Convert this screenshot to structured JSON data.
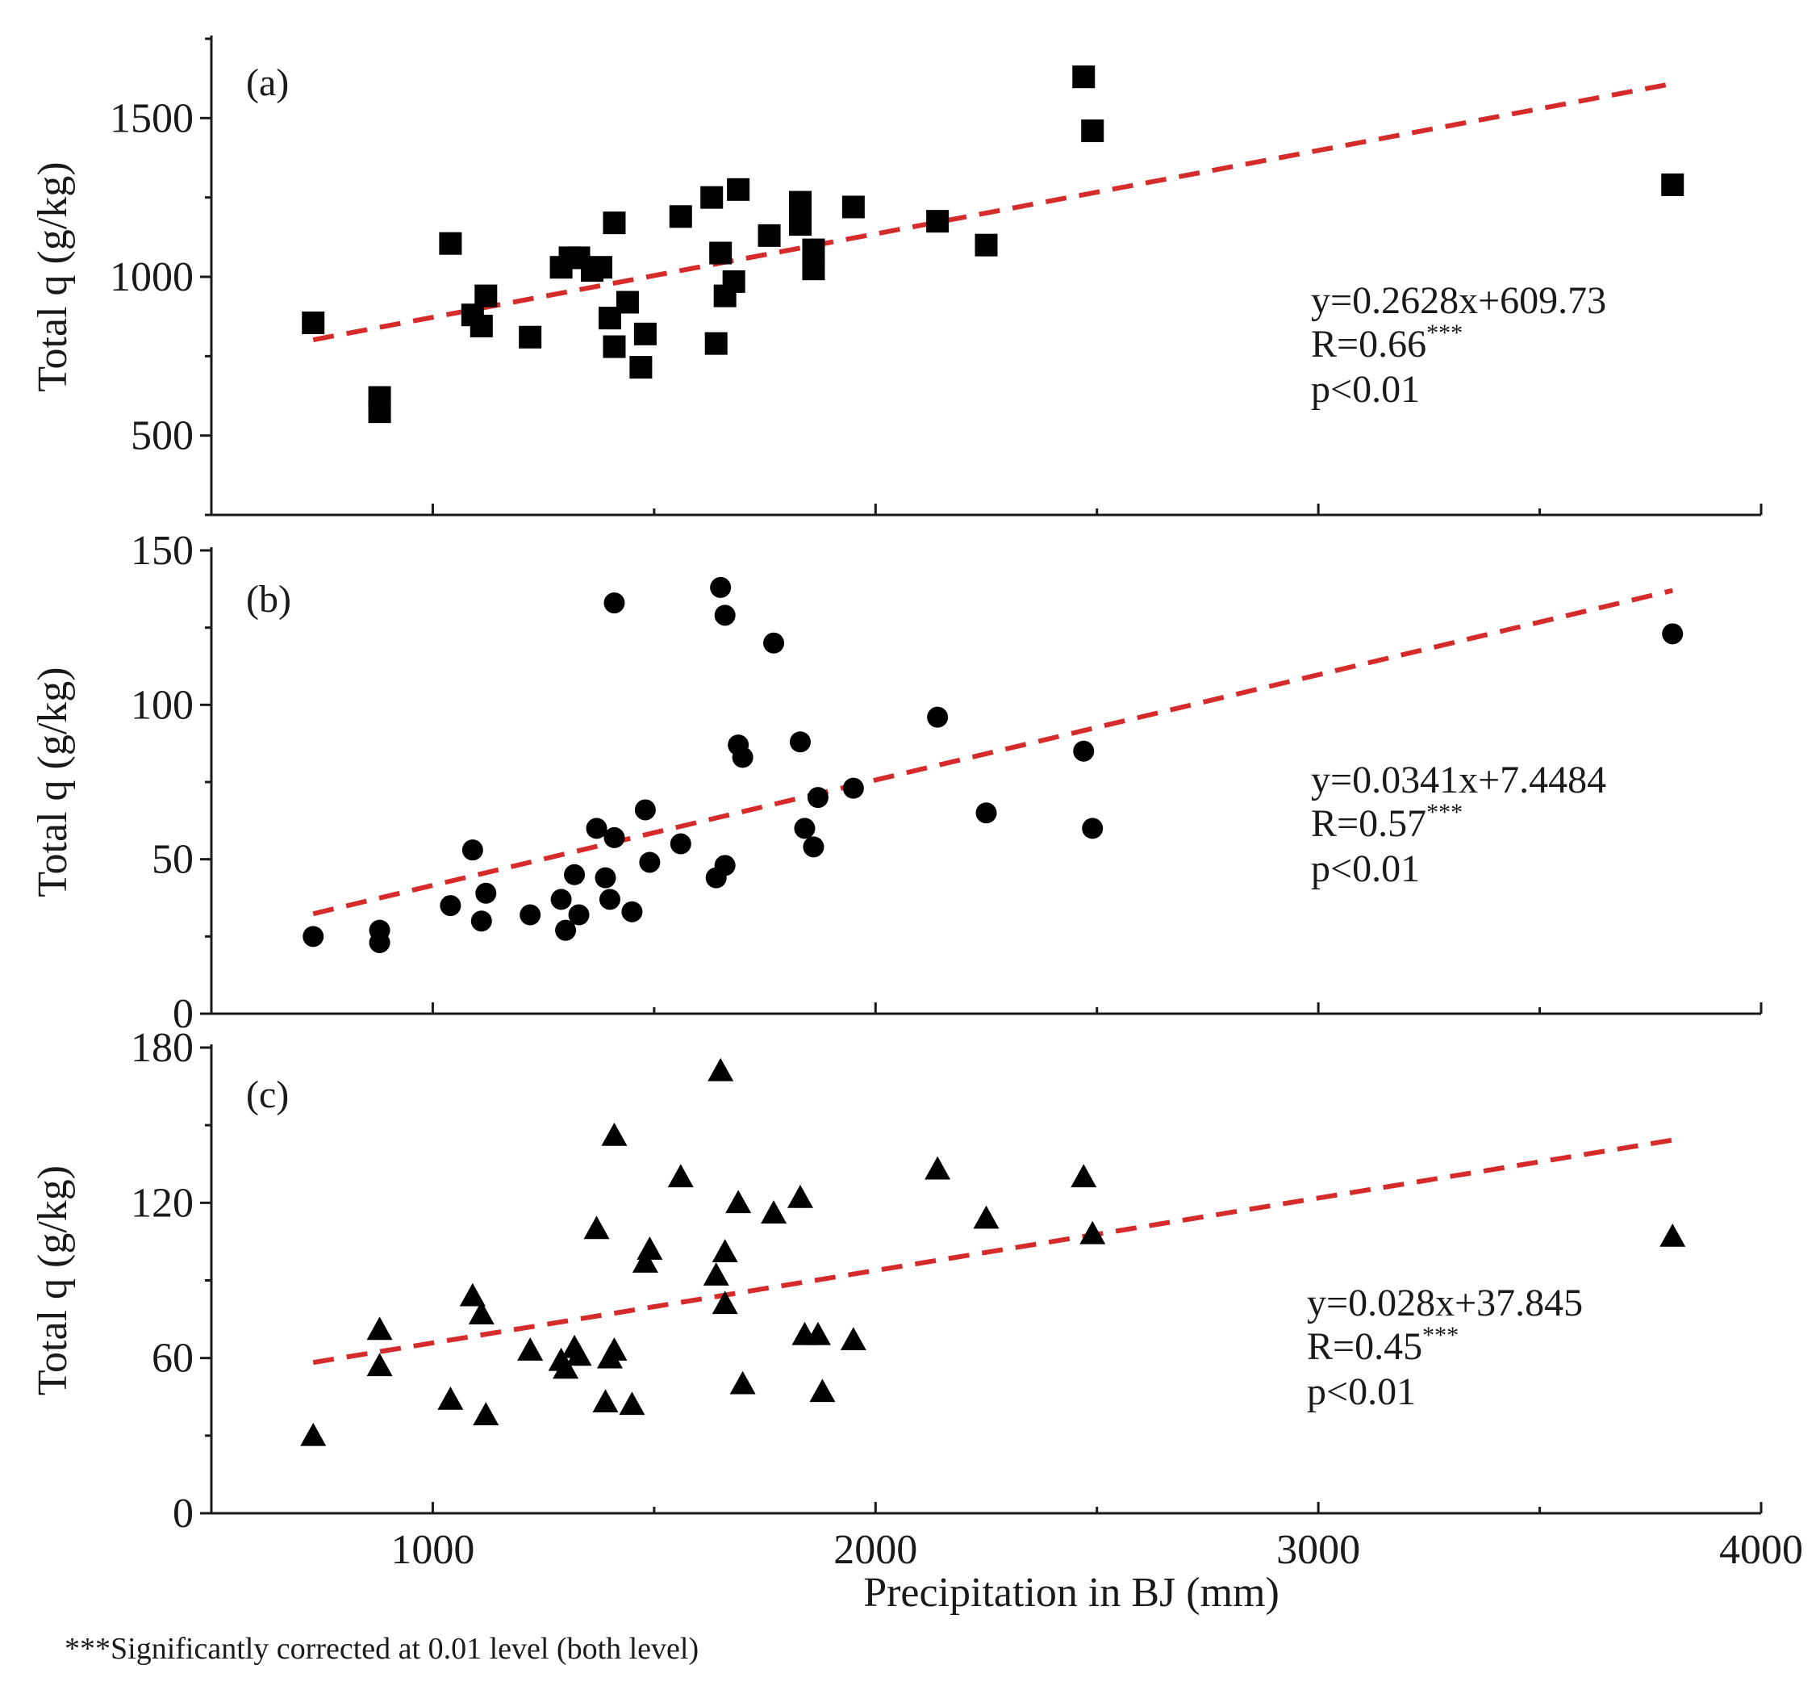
{
  "chart_data": [
    {
      "type": "scatter",
      "panel": "(a)",
      "marker": "square",
      "ylabel": "Total q (g/kg)",
      "xlabel": "Precipitation in BJ (mm)",
      "xlim": [
        500,
        4000
      ],
      "ylim": [
        250,
        1750
      ],
      "yticks": [
        500,
        1000,
        1500
      ],
      "xticks": [
        1000,
        2000,
        3000,
        4000
      ],
      "points": [
        [
          730,
          855
        ],
        [
          880,
          620
        ],
        [
          880,
          575
        ],
        [
          1040,
          1105
        ],
        [
          1090,
          880
        ],
        [
          1110,
          845
        ],
        [
          1120,
          940
        ],
        [
          1220,
          810
        ],
        [
          1290,
          1030
        ],
        [
          1310,
          1060
        ],
        [
          1330,
          1060
        ],
        [
          1360,
          1020
        ],
        [
          1380,
          1030
        ],
        [
          1400,
          870
        ],
        [
          1410,
          1170
        ],
        [
          1410,
          780
        ],
        [
          1440,
          920
        ],
        [
          1470,
          715
        ],
        [
          1480,
          820
        ],
        [
          1560,
          1190
        ],
        [
          1630,
          1250
        ],
        [
          1640,
          790
        ],
        [
          1650,
          1075
        ],
        [
          1660,
          940
        ],
        [
          1680,
          985
        ],
        [
          1690,
          1275
        ],
        [
          1760,
          1130
        ],
        [
          1830,
          1235
        ],
        [
          1830,
          1165
        ],
        [
          1860,
          1085
        ],
        [
          1860,
          1025
        ],
        [
          1950,
          1220
        ],
        [
          2140,
          1175
        ],
        [
          2250,
          1100
        ],
        [
          2470,
          1630
        ],
        [
          2490,
          1460
        ],
        [
          3800,
          1290
        ]
      ],
      "fit": {
        "slope": 0.2628,
        "intercept": 609.73,
        "x_range": [
          730,
          3800
        ]
      },
      "annotation": {
        "equation": "y=0.2628x+609.73",
        "r_text": "R=0.66",
        "r_sup": "***",
        "p_text": "p<0.01"
      }
    },
    {
      "type": "scatter",
      "panel": "(b)",
      "marker": "circle",
      "ylabel": "Total q (g/kg)",
      "xlabel": "Precipitation in BJ (mm)",
      "xlim": [
        500,
        4000
      ],
      "ylim": [
        0,
        150
      ],
      "yticks": [
        0,
        50,
        100,
        150
      ],
      "xticks": [
        1000,
        2000,
        3000,
        4000
      ],
      "points": [
        [
          730,
          25
        ],
        [
          880,
          27
        ],
        [
          880,
          23
        ],
        [
          1040,
          35
        ],
        [
          1090,
          53
        ],
        [
          1110,
          30
        ],
        [
          1120,
          39
        ],
        [
          1220,
          32
        ],
        [
          1290,
          37
        ],
        [
          1300,
          27
        ],
        [
          1320,
          45
        ],
        [
          1330,
          32
        ],
        [
          1370,
          60
        ],
        [
          1390,
          44
        ],
        [
          1400,
          37
        ],
        [
          1410,
          57
        ],
        [
          1410,
          133
        ],
        [
          1450,
          33
        ],
        [
          1480,
          66
        ],
        [
          1490,
          49
        ],
        [
          1560,
          55
        ],
        [
          1640,
          44
        ],
        [
          1650,
          138
        ],
        [
          1660,
          48
        ],
        [
          1660,
          129
        ],
        [
          1690,
          87
        ],
        [
          1700,
          83
        ],
        [
          1770,
          120
        ],
        [
          1830,
          88
        ],
        [
          1840,
          60
        ],
        [
          1860,
          54
        ],
        [
          1870,
          70
        ],
        [
          1950,
          73
        ],
        [
          2140,
          96
        ],
        [
          2250,
          65
        ],
        [
          2470,
          85
        ],
        [
          2490,
          60
        ],
        [
          3800,
          123
        ]
      ],
      "fit": {
        "slope": 0.0341,
        "intercept": 7.4484,
        "x_range": [
          730,
          3800
        ]
      },
      "annotation": {
        "equation": "y=0.0341x+7.4484",
        "r_text": "R=0.57",
        "r_sup": "***",
        "p_text": "p<0.01"
      }
    },
    {
      "type": "scatter",
      "panel": "(c)",
      "marker": "triangle",
      "ylabel": "Total q (g/kg)",
      "xlabel": "Precipitation in BJ (mm)",
      "xlim": [
        500,
        4000
      ],
      "ylim": [
        0,
        180
      ],
      "yticks": [
        0,
        60,
        120,
        180
      ],
      "xticks": [
        1000,
        2000,
        3000,
        4000
      ],
      "points": [
        [
          730,
          30
        ],
        [
          880,
          71
        ],
        [
          880,
          57
        ],
        [
          1040,
          44
        ],
        [
          1090,
          84
        ],
        [
          1110,
          77
        ],
        [
          1120,
          38
        ],
        [
          1220,
          63
        ],
        [
          1290,
          59
        ],
        [
          1300,
          56
        ],
        [
          1320,
          64
        ],
        [
          1330,
          61
        ],
        [
          1370,
          110
        ],
        [
          1390,
          43
        ],
        [
          1400,
          60
        ],
        [
          1410,
          63
        ],
        [
          1410,
          146
        ],
        [
          1450,
          42
        ],
        [
          1480,
          97
        ],
        [
          1490,
          102
        ],
        [
          1560,
          130
        ],
        [
          1640,
          92
        ],
        [
          1650,
          171
        ],
        [
          1660,
          101
        ],
        [
          1660,
          81
        ],
        [
          1690,
          120
        ],
        [
          1700,
          50
        ],
        [
          1770,
          116
        ],
        [
          1830,
          122
        ],
        [
          1840,
          69
        ],
        [
          1870,
          69
        ],
        [
          1880,
          47
        ],
        [
          1950,
          67
        ],
        [
          2140,
          133
        ],
        [
          2250,
          114
        ],
        [
          2470,
          130
        ],
        [
          2490,
          108
        ],
        [
          3800,
          107
        ]
      ],
      "fit": {
        "slope": 0.028,
        "intercept": 37.845,
        "x_range": [
          730,
          3800
        ]
      },
      "annotation": {
        "equation": "y=0.028x+37.845",
        "r_text": "R=0.45",
        "r_sup": "***",
        "p_text": "p<0.01"
      }
    }
  ],
  "figure": {
    "xlabel": "Precipitation in BJ (mm)",
    "footnote": "***Significantly corrected at 0.01 level (both level)",
    "marker_color": "#000000",
    "fit_color": "#d62b2b"
  }
}
